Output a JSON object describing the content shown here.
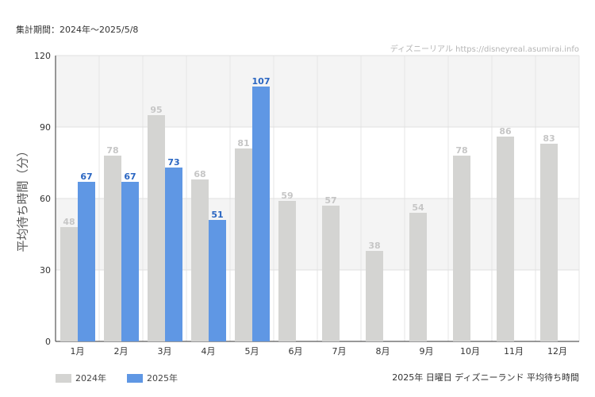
{
  "header": {
    "period": "集計期間：2024年～2025/5/8",
    "watermark": "ディズニーリアル https://disneyreal.asumirai.info"
  },
  "footer": {
    "caption": "2025年 日曜日 ディズニーランド 平均待ち時間"
  },
  "colors": {
    "series_2024": "#d4d4d2",
    "series_2025": "#5f97e4",
    "label_2024": "#c6c6c6",
    "label_2025": "#2a66c2"
  },
  "chart_data": {
    "type": "bar",
    "title": "",
    "xlabel": "",
    "ylabel": "平均待ち時間（分）",
    "categories": [
      "1月",
      "2月",
      "3月",
      "4月",
      "5月",
      "6月",
      "7月",
      "8月",
      "9月",
      "10月",
      "11月",
      "12月"
    ],
    "series": [
      {
        "name": "2024年",
        "values": [
          48,
          78,
          95,
          68,
          81,
          59,
          57,
          38,
          54,
          78,
          86,
          83
        ]
      },
      {
        "name": "2025年",
        "values": [
          67,
          67,
          73,
          51,
          107,
          null,
          null,
          null,
          null,
          null,
          null,
          null
        ]
      }
    ],
    "ylim": [
      0,
      120
    ],
    "yticks": [
      0,
      30,
      60,
      90,
      120
    ],
    "grid": true,
    "legend": "bottom-left"
  }
}
